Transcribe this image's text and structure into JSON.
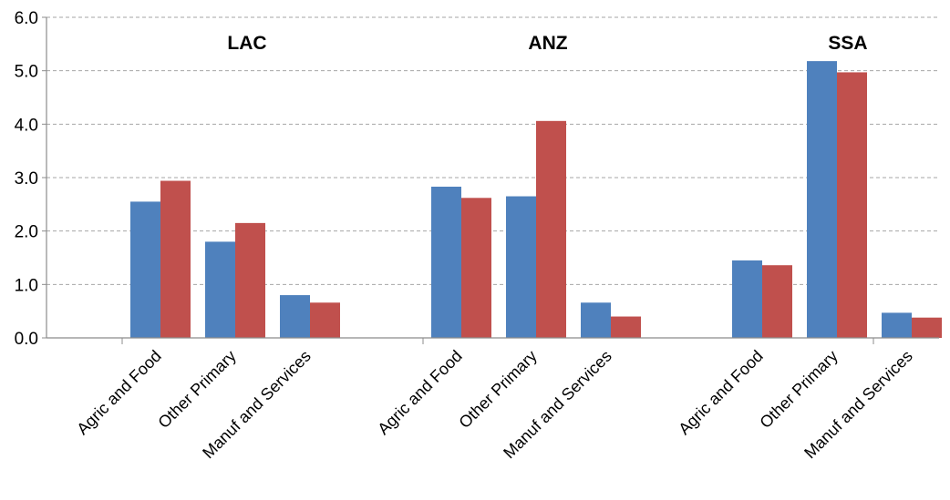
{
  "chart_data": {
    "type": "bar",
    "ylim": [
      0,
      6
    ],
    "y_ticks": [
      "0.0",
      "1.0",
      "2.0",
      "3.0",
      "4.0",
      "5.0",
      "6.0"
    ],
    "grid": "horizontal-dashed",
    "legend": "none",
    "colors": [
      "#4f81bd",
      "#c0504d"
    ],
    "groups": [
      {
        "title": "LAC",
        "categories": [
          "Agric and Food",
          "Other Primary",
          "Manuf and Services"
        ],
        "series": [
          {
            "values": [
              2.55,
              1.8,
              0.8
            ]
          },
          {
            "values": [
              2.94,
              2.15,
              0.66
            ]
          }
        ]
      },
      {
        "title": "ANZ",
        "categories": [
          "Agric and Food",
          "Other Primary",
          "Manuf and Services"
        ],
        "series": [
          {
            "values": [
              2.83,
              2.65,
              0.66
            ]
          },
          {
            "values": [
              2.62,
              4.06,
              0.4
            ]
          }
        ]
      },
      {
        "title": "SSA",
        "categories": [
          "Agric and Food",
          "Other Primary",
          "Manuf and Services"
        ],
        "series": [
          {
            "values": [
              1.45,
              5.18,
              0.47
            ]
          },
          {
            "values": [
              1.36,
              4.97,
              0.38
            ]
          }
        ]
      }
    ]
  }
}
